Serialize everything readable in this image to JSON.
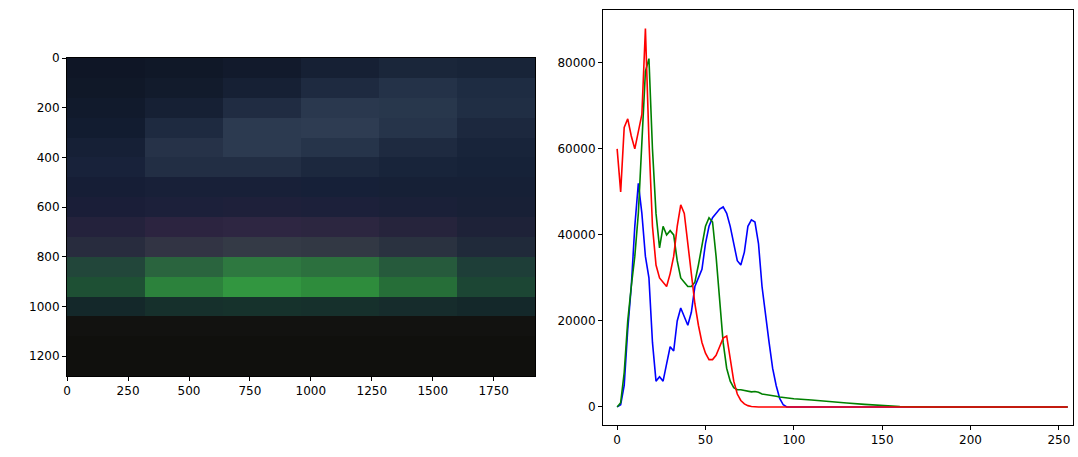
{
  "chart_data": [
    {
      "type": "image",
      "xlim": [
        -0.5,
        1919.5
      ],
      "ylim": [
        1279.5,
        -0.5
      ],
      "xticks": [
        0,
        250,
        500,
        750,
        1000,
        1250,
        1500,
        1750
      ],
      "yticks": [
        0,
        200,
        400,
        600,
        800,
        1000,
        1200
      ],
      "grid": false,
      "pixels": [
        [
          [
            15,
            22,
            38
          ],
          [
            16,
            24,
            40
          ],
          [
            18,
            26,
            44
          ],
          [
            22,
            32,
            52
          ],
          [
            26,
            38,
            58
          ],
          [
            24,
            36,
            56
          ]
        ],
        [
          [
            16,
            24,
            40
          ],
          [
            18,
            27,
            44
          ],
          [
            22,
            32,
            52
          ],
          [
            30,
            42,
            64
          ],
          [
            36,
            50,
            72
          ],
          [
            30,
            44,
            66
          ]
        ],
        [
          [
            17,
            26,
            44
          ],
          [
            22,
            32,
            52
          ],
          [
            32,
            44,
            66
          ],
          [
            42,
            56,
            78
          ],
          [
            40,
            55,
            76
          ],
          [
            32,
            46,
            68
          ]
        ],
        [
          [
            18,
            28,
            48
          ],
          [
            30,
            42,
            64
          ],
          [
            44,
            58,
            80
          ],
          [
            46,
            60,
            82
          ],
          [
            38,
            52,
            74
          ],
          [
            28,
            40,
            62
          ]
        ],
        [
          [
            22,
            32,
            54
          ],
          [
            38,
            50,
            72
          ],
          [
            44,
            58,
            80
          ],
          [
            38,
            52,
            74
          ],
          [
            30,
            42,
            64
          ],
          [
            24,
            36,
            58
          ]
        ],
        [
          [
            24,
            34,
            58
          ],
          [
            34,
            46,
            68
          ],
          [
            34,
            46,
            68
          ],
          [
            28,
            40,
            62
          ],
          [
            24,
            36,
            58
          ],
          [
            22,
            34,
            56
          ]
        ],
        [
          [
            22,
            30,
            54
          ],
          [
            24,
            32,
            56
          ],
          [
            24,
            32,
            56
          ],
          [
            22,
            32,
            56
          ],
          [
            22,
            32,
            54
          ],
          [
            22,
            32,
            54
          ]
        ],
        [
          [
            26,
            30,
            56
          ],
          [
            28,
            32,
            58
          ],
          [
            30,
            32,
            58
          ],
          [
            28,
            32,
            58
          ],
          [
            26,
            32,
            56
          ],
          [
            24,
            32,
            54
          ]
        ],
        [
          [
            36,
            34,
            60
          ],
          [
            44,
            36,
            64
          ],
          [
            46,
            38,
            66
          ],
          [
            44,
            38,
            64
          ],
          [
            38,
            36,
            60
          ],
          [
            30,
            34,
            56
          ]
        ],
        [
          [
            40,
            44,
            62
          ],
          [
            50,
            52,
            68
          ],
          [
            52,
            58,
            70
          ],
          [
            50,
            56,
            68
          ],
          [
            42,
            50,
            64
          ],
          [
            32,
            42,
            58
          ]
        ],
        [
          [
            34,
            70,
            58
          ],
          [
            42,
            100,
            62
          ],
          [
            46,
            120,
            64
          ],
          [
            44,
            112,
            62
          ],
          [
            38,
            90,
            60
          ],
          [
            30,
            62,
            56
          ]
        ],
        [
          [
            30,
            80,
            52
          ],
          [
            44,
            130,
            60
          ],
          [
            50,
            150,
            64
          ],
          [
            46,
            140,
            60
          ],
          [
            38,
            110,
            56
          ],
          [
            28,
            70,
            52
          ]
        ],
        [
          [
            20,
            40,
            42
          ],
          [
            22,
            48,
            44
          ],
          [
            22,
            50,
            44
          ],
          [
            22,
            48,
            44
          ],
          [
            22,
            44,
            44
          ],
          [
            20,
            40,
            42
          ]
        ],
        [
          [
            18,
            18,
            16
          ],
          [
            18,
            18,
            16
          ],
          [
            18,
            18,
            16
          ],
          [
            18,
            18,
            16
          ],
          [
            18,
            18,
            16
          ],
          [
            18,
            18,
            16
          ]
        ],
        [
          [
            16,
            16,
            13
          ],
          [
            16,
            16,
            13
          ],
          [
            16,
            16,
            13
          ],
          [
            16,
            16,
            13
          ],
          [
            16,
            16,
            13
          ],
          [
            16,
            16,
            13
          ]
        ],
        [
          [
            16,
            16,
            13
          ],
          [
            16,
            16,
            13
          ],
          [
            16,
            16,
            13
          ],
          [
            16,
            16,
            13
          ],
          [
            16,
            16,
            13
          ],
          [
            16,
            16,
            13
          ]
        ]
      ]
    },
    {
      "type": "line",
      "xlim": [
        -8,
        258
      ],
      "ylim": [
        -4200,
        92300
      ],
      "xticks": [
        0,
        50,
        100,
        150,
        200,
        250
      ],
      "yticks": [
        0,
        20000,
        40000,
        60000,
        80000
      ],
      "grid": false,
      "x": [
        0,
        2,
        4,
        6,
        8,
        10,
        12,
        14,
        16,
        18,
        20,
        22,
        24,
        26,
        28,
        30,
        32,
        34,
        36,
        38,
        40,
        42,
        44,
        46,
        48,
        50,
        52,
        54,
        56,
        58,
        60,
        62,
        64,
        66,
        68,
        70,
        72,
        74,
        76,
        78,
        80,
        82,
        84,
        86,
        88,
        90,
        92,
        94,
        96,
        98,
        100,
        110,
        120,
        130,
        140,
        150,
        160,
        180,
        200,
        220,
        240,
        255
      ],
      "series": [
        {
          "color": "#0000ff",
          "values": [
            0,
            500,
            5000,
            18000,
            28000,
            42000,
            52000,
            45000,
            35000,
            30000,
            15000,
            6000,
            7000,
            6000,
            10000,
            14000,
            13000,
            20000,
            23000,
            21000,
            19000,
            22000,
            28000,
            30000,
            32000,
            38000,
            42000,
            44000,
            45000,
            46000,
            46500,
            45000,
            42000,
            38000,
            34000,
            33000,
            36000,
            42000,
            43500,
            43000,
            38000,
            28000,
            21000,
            15000,
            9000,
            5000,
            2000,
            500,
            0,
            0,
            0,
            0,
            0,
            0,
            0,
            0,
            0,
            0,
            0,
            0,
            0,
            0
          ]
        },
        {
          "color": "#008000",
          "values": [
            0,
            1000,
            8000,
            20000,
            28000,
            35000,
            45000,
            60000,
            78000,
            81000,
            60000,
            45000,
            37000,
            42000,
            40000,
            41000,
            40000,
            34000,
            30000,
            29000,
            28000,
            28000,
            29000,
            33000,
            38000,
            42000,
            44000,
            43000,
            35000,
            25000,
            15000,
            9000,
            6000,
            4500,
            4000,
            4000,
            3800,
            3600,
            3500,
            3600,
            3400,
            3000,
            2900,
            2800,
            2600,
            2500,
            2300,
            2200,
            2100,
            2000,
            1900,
            1600,
            1200,
            900,
            600,
            400,
            100,
            0,
            0,
            0,
            0,
            0
          ]
        },
        {
          "color": "#ff0000",
          "values": [
            60000,
            50000,
            65000,
            67000,
            63000,
            60000,
            64000,
            68000,
            88000,
            62000,
            42000,
            33000,
            30000,
            29000,
            28000,
            31000,
            35000,
            42000,
            47000,
            45000,
            38000,
            30000,
            24000,
            19000,
            15000,
            12500,
            11000,
            11000,
            12000,
            14000,
            16000,
            16500,
            11000,
            6000,
            3000,
            1500,
            700,
            300,
            100,
            0,
            0,
            0,
            0,
            0,
            0,
            0,
            0,
            0,
            0,
            0,
            0,
            0,
            0,
            0,
            0,
            0,
            0,
            0,
            0,
            0,
            0,
            0
          ]
        }
      ]
    }
  ]
}
